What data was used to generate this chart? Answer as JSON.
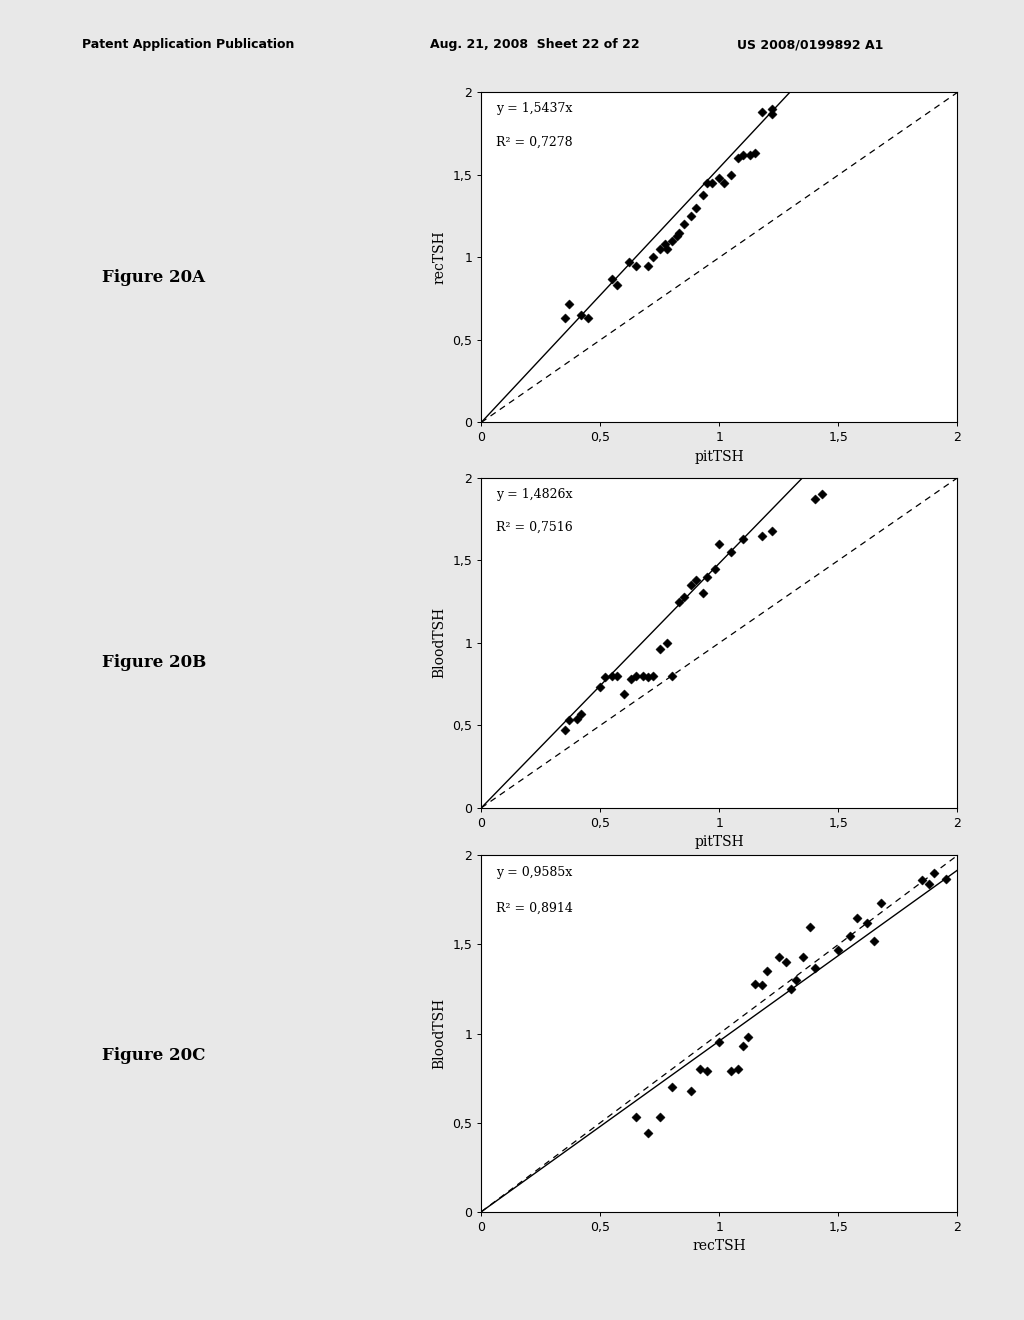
{
  "fig_width": 10.24,
  "fig_height": 13.2,
  "bg_color": "#f0f0f0",
  "plots": [
    {
      "label": "Figure 20A",
      "xlabel": "pitTSH",
      "ylabel": "recTSH",
      "equation": "y = 1,5437x",
      "r2": "R² = 0,7278",
      "slope": 1.5437,
      "scatter_x": [
        0.35,
        0.37,
        0.42,
        0.45,
        0.55,
        0.57,
        0.62,
        0.65,
        0.7,
        0.72,
        0.75,
        0.77,
        0.78,
        0.8,
        0.82,
        0.83,
        0.85,
        0.88,
        0.9,
        0.93,
        0.95,
        0.97,
        1.0,
        1.02,
        1.05,
        1.08,
        1.1,
        1.13,
        1.15,
        1.18,
        1.22,
        1.22
      ],
      "scatter_y": [
        0.63,
        0.72,
        0.65,
        0.63,
        0.87,
        0.83,
        0.97,
        0.95,
        0.95,
        1.0,
        1.05,
        1.08,
        1.05,
        1.1,
        1.13,
        1.15,
        1.2,
        1.25,
        1.3,
        1.38,
        1.45,
        1.45,
        1.48,
        1.45,
        1.5,
        1.6,
        1.62,
        1.62,
        1.63,
        1.88,
        1.87,
        1.9
      ]
    },
    {
      "label": "Figure 20B",
      "xlabel": "pitTSH",
      "ylabel": "BloodTSH",
      "equation": "y = 1,4826x",
      "r2": "R² = 0,7516",
      "slope": 1.4826,
      "scatter_x": [
        0.35,
        0.37,
        0.4,
        0.42,
        0.5,
        0.52,
        0.55,
        0.57,
        0.6,
        0.63,
        0.65,
        0.68,
        0.7,
        0.72,
        0.75,
        0.78,
        0.8,
        0.83,
        0.85,
        0.88,
        0.9,
        0.93,
        0.95,
        0.98,
        1.0,
        1.05,
        1.1,
        1.18,
        1.22,
        1.4,
        1.43
      ],
      "scatter_y": [
        0.47,
        0.53,
        0.54,
        0.57,
        0.73,
        0.79,
        0.8,
        0.8,
        0.69,
        0.78,
        0.8,
        0.8,
        0.79,
        0.8,
        0.96,
        1.0,
        0.8,
        1.25,
        1.28,
        1.35,
        1.38,
        1.3,
        1.4,
        1.45,
        1.6,
        1.55,
        1.63,
        1.65,
        1.68,
        1.87,
        1.9
      ]
    },
    {
      "label": "Figure 20C",
      "xlabel": "recTSH",
      "ylabel": "BloodTSH",
      "equation": "y = 0,9585x",
      "r2": "R² = 0,8914",
      "slope": 0.9585,
      "scatter_x": [
        0.65,
        0.7,
        0.75,
        0.8,
        0.88,
        0.92,
        0.95,
        1.0,
        1.05,
        1.08,
        1.1,
        1.12,
        1.15,
        1.18,
        1.2,
        1.25,
        1.28,
        1.3,
        1.32,
        1.35,
        1.38,
        1.4,
        1.5,
        1.55,
        1.58,
        1.62,
        1.65,
        1.68,
        1.85,
        1.88,
        1.9,
        1.95
      ],
      "scatter_y": [
        0.53,
        0.44,
        0.53,
        0.7,
        0.68,
        0.8,
        0.79,
        0.95,
        0.79,
        0.8,
        0.93,
        0.98,
        1.28,
        1.27,
        1.35,
        1.43,
        1.4,
        1.25,
        1.3,
        1.43,
        1.6,
        1.37,
        1.47,
        1.55,
        1.65,
        1.62,
        1.52,
        1.73,
        1.86,
        1.84,
        1.9,
        1.87
      ]
    }
  ]
}
